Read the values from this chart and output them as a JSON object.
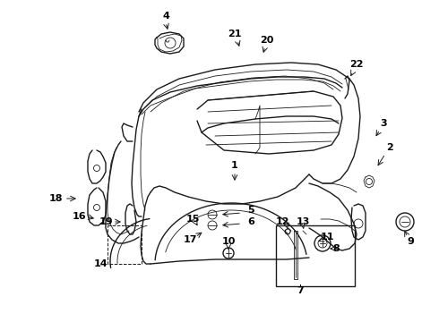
{
  "background_color": "#ffffff",
  "line_color": "#1a1a1a",
  "figsize": [
    4.9,
    3.6
  ],
  "dpi": 100,
  "labels": {
    "1": [
      262,
      195,
      262,
      215
    ],
    "2": [
      430,
      168,
      430,
      185
    ],
    "3": [
      413,
      145,
      413,
      162
    ],
    "4": [
      185,
      10,
      185,
      28
    ],
    "5": [
      282,
      238,
      265,
      238
    ],
    "6": [
      282,
      248,
      265,
      248
    ],
    "7": [
      335,
      318,
      335,
      308
    ],
    "8": [
      380,
      278,
      365,
      278
    ],
    "9": [
      455,
      278,
      440,
      278
    ],
    "10": [
      268,
      308,
      268,
      295
    ],
    "11": [
      370,
      268,
      358,
      272
    ],
    "12": [
      322,
      258,
      330,
      265
    ],
    "13": [
      338,
      258,
      342,
      265
    ],
    "14": [
      108,
      298,
      130,
      298
    ],
    "15": [
      218,
      245,
      220,
      238
    ],
    "16": [
      120,
      248,
      135,
      250
    ],
    "17": [
      212,
      268,
      215,
      258
    ],
    "18": [
      68,
      228,
      85,
      225
    ],
    "19": [
      145,
      248,
      148,
      240
    ],
    "20": [
      300,
      52,
      295,
      65
    ],
    "21": [
      268,
      45,
      270,
      58
    ],
    "22": [
      395,
      78,
      385,
      88
    ]
  }
}
